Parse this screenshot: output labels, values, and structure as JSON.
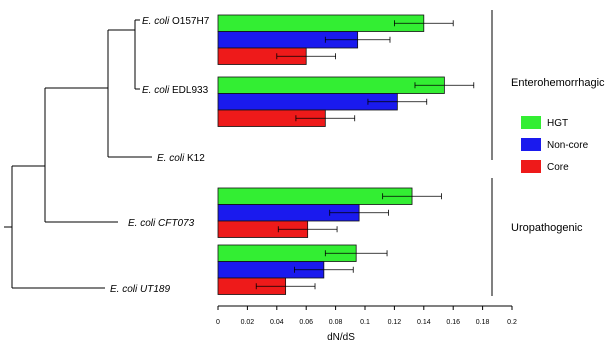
{
  "chart_data": {
    "type": "bar",
    "orientation": "horizontal",
    "xlabel": "dN/dS",
    "xlim": [
      0,
      0.2
    ],
    "xticks": [
      "0",
      "0.02",
      "0.04",
      "0.06",
      "0.08",
      "0.1",
      "0.12",
      "0.14",
      "0.16",
      "0.18",
      "0.2"
    ],
    "grid": false,
    "legend_position": "right",
    "series": [
      {
        "name": "HGT",
        "color": "#33ee33"
      },
      {
        "name": "Non-core",
        "color": "#1a1aee"
      },
      {
        "name": "Core",
        "color": "#ee1a1a"
      }
    ],
    "strains": [
      {
        "italic": "E. coli",
        "rest": " O157H7",
        "values": [
          0.14,
          0.095,
          0.06
        ],
        "errors": [
          0.02,
          0.022,
          0.02
        ]
      },
      {
        "italic": "E. coli",
        "rest": " EDL933",
        "values": [
          0.154,
          0.122,
          0.073
        ],
        "errors": [
          0.02,
          0.02,
          0.02
        ]
      },
      {
        "italic": "E. coli",
        "rest": " K12"
      },
      {
        "italic": "E. coli CFT073",
        "rest": "",
        "values": [
          0.132,
          0.096,
          0.061
        ],
        "errors": [
          0.02,
          0.02,
          0.02
        ]
      },
      {
        "italic": "E. coli UT189",
        "rest": "",
        "values": [
          0.094,
          0.072,
          0.046
        ],
        "errors": [
          0.021,
          0.02,
          0.02
        ]
      }
    ],
    "groups": [
      "Enterohemorrhagic",
      "Uropathogenic"
    ]
  }
}
